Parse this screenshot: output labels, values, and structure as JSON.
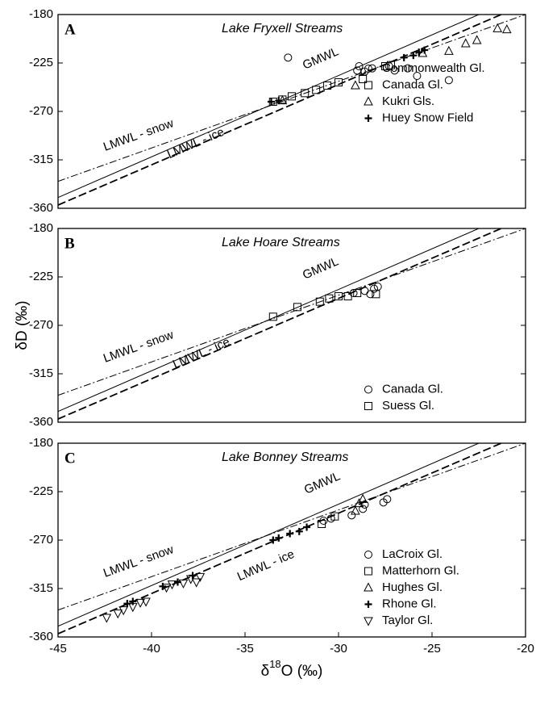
{
  "y_label": "δD (‰)",
  "x_label": {
    "base": "δ",
    "sup": "18",
    "rest": "O (‰)"
  },
  "chart_data": [
    {
      "type": "scatter",
      "panel_label": "A",
      "title": "Lake Fryxell Streams",
      "xlim": [
        -45,
        -20
      ],
      "ylim": [
        -180,
        -360
      ],
      "yticks": [
        -180,
        -225,
        -270,
        -315,
        -360
      ],
      "legend": "center right",
      "reference_lines": [
        {
          "name": "GMWL",
          "style": "solid",
          "x": [
            -45,
            -22.5
          ],
          "values": [
            -350,
            -180
          ]
        },
        {
          "name": "LMWL - snow",
          "style": "dashdot",
          "x": [
            -45,
            -20
          ],
          "values": [
            -335,
            -180
          ]
        },
        {
          "name": "LMWL - ice",
          "style": "dashed",
          "x": [
            -45,
            -21.3
          ],
          "values": [
            -357,
            -180
          ]
        }
      ],
      "series": [
        {
          "name": "Commonwealth Gl.",
          "marker": "circle",
          "color": "#000000",
          "x": [
            -32.7,
            -29,
            -28.6,
            -28.2,
            -28.9,
            -27.3,
            -27,
            -26.3,
            -25.8,
            -24.1
          ],
          "values": [
            -220,
            -232,
            -233,
            -230,
            -228,
            -228,
            -232,
            -230,
            -237,
            -241
          ]
        },
        {
          "name": "Canada Gl.",
          "marker": "square",
          "color": "#000000",
          "x": [
            -33.5,
            -33,
            -32.5,
            -31.8,
            -31.2,
            -30.6,
            -30,
            -28.7,
            -27.5,
            -27.2
          ],
          "values": [
            -261,
            -259,
            -256,
            -253,
            -250,
            -246,
            -243,
            -240,
            -228,
            -227
          ]
        },
        {
          "name": "Kukri Gls.",
          "marker": "triangle",
          "color": "#000000",
          "x": [
            -33,
            -29.1,
            -25.5,
            -24.1,
            -23.2,
            -22.6,
            -21.5,
            -21
          ],
          "values": [
            -260,
            -246,
            -216,
            -214,
            -207,
            -204,
            -193,
            -194
          ]
        },
        {
          "name": "Huey Snow Field",
          "marker": "plus",
          "color": "#000000",
          "x": [
            -33.6,
            -33.2,
            -26.5,
            -26,
            -25.7,
            -25.4
          ],
          "values": [
            -261,
            -260,
            -220,
            -218,
            -215,
            -213
          ]
        }
      ]
    },
    {
      "type": "scatter",
      "panel_label": "B",
      "title": "Lake Hoare Streams",
      "xlim": [
        -45,
        -20
      ],
      "ylim": [
        -180,
        -360
      ],
      "yticks": [
        -180,
        -225,
        -270,
        -315,
        -360
      ],
      "legend": "lower right",
      "reference_lines": [
        {
          "name": "GMWL",
          "style": "solid",
          "x": [
            -45,
            -22.5
          ],
          "values": [
            -350,
            -180
          ]
        },
        {
          "name": "LMWL - snow",
          "style": "dashdot",
          "x": [
            -45,
            -20
          ],
          "values": [
            -335,
            -180
          ]
        },
        {
          "name": "LMWL - ice",
          "style": "dashed",
          "x": [
            -45,
            -21.3
          ],
          "values": [
            -357,
            -180
          ]
        }
      ],
      "series": [
        {
          "name": "Canada Gl.",
          "marker": "circle",
          "color": "#000000",
          "x": [
            -29.2,
            -28.6,
            -28.3,
            -28.1,
            -27.9
          ],
          "values": [
            -240,
            -238,
            -241,
            -236,
            -234
          ]
        },
        {
          "name": "Suess Gl.",
          "marker": "square",
          "color": "#000000",
          "x": [
            -33.5,
            -32.2,
            -31,
            -30.5,
            -30,
            -29.5,
            -29,
            -28
          ],
          "values": [
            -262,
            -253,
            -248,
            -245,
            -243,
            -243,
            -240,
            -241
          ]
        }
      ]
    },
    {
      "type": "scatter",
      "panel_label": "C",
      "title": "Lake Bonney Streams",
      "xlim": [
        -45,
        -20
      ],
      "ylim": [
        -180,
        -360
      ],
      "yticks": [
        -180,
        -225,
        -270,
        -315,
        -360
      ],
      "xticks": [
        -45,
        -40,
        -35,
        -30,
        -25,
        -20
      ],
      "legend": "lower right",
      "reference_lines": [
        {
          "name": "GMWL",
          "style": "solid",
          "x": [
            -45,
            -22.5
          ],
          "values": [
            -350,
            -180
          ]
        },
        {
          "name": "LMWL - snow",
          "style": "dashdot",
          "x": [
            -45,
            -20
          ],
          "values": [
            -335,
            -180
          ]
        },
        {
          "name": "LMWL - ice",
          "style": "dashed",
          "x": [
            -45,
            -21.3
          ],
          "values": [
            -357,
            -180
          ]
        }
      ],
      "series": [
        {
          "name": "LaCroix Gl.",
          "marker": "circle",
          "color": "#000000",
          "x": [
            -30.8,
            -30.4,
            -29.3,
            -28.7,
            -28.6,
            -27.6,
            -27.4
          ],
          "values": [
            -252,
            -250,
            -247,
            -241,
            -237,
            -235,
            -232
          ]
        },
        {
          "name": "Matterhorn Gl.",
          "marker": "square",
          "color": "#000000",
          "x": [
            -30.9,
            -30.2
          ],
          "values": [
            -255,
            -248
          ]
        },
        {
          "name": "Hughes Gl.",
          "marker": "triangle",
          "color": "#000000",
          "x": [
            -29.1,
            -28.9,
            -28.7
          ],
          "values": [
            -243,
            -236,
            -232
          ]
        },
        {
          "name": "Rhone Gl.",
          "marker": "plus",
          "color": "#000000",
          "x": [
            -41.3,
            -41,
            -39.4,
            -38.6,
            -37.8,
            -33.5,
            -33.2,
            -32.6,
            -32.1,
            -31.7
          ],
          "values": [
            -329,
            -327,
            -313,
            -309,
            -303,
            -270,
            -268,
            -264,
            -262,
            -258
          ]
        },
        {
          "name": "Taylor Gl.",
          "marker": "triangle-down",
          "color": "#000000",
          "x": [
            -42.4,
            -41.8,
            -41.5,
            -41,
            -40.6,
            -40.3,
            -39.2,
            -38.9,
            -38.3,
            -37.9,
            -37.6,
            -37.4
          ],
          "values": [
            -342,
            -338,
            -335,
            -332,
            -328,
            -327,
            -314,
            -311,
            -310,
            -306,
            -309,
            -304
          ]
        }
      ]
    }
  ]
}
